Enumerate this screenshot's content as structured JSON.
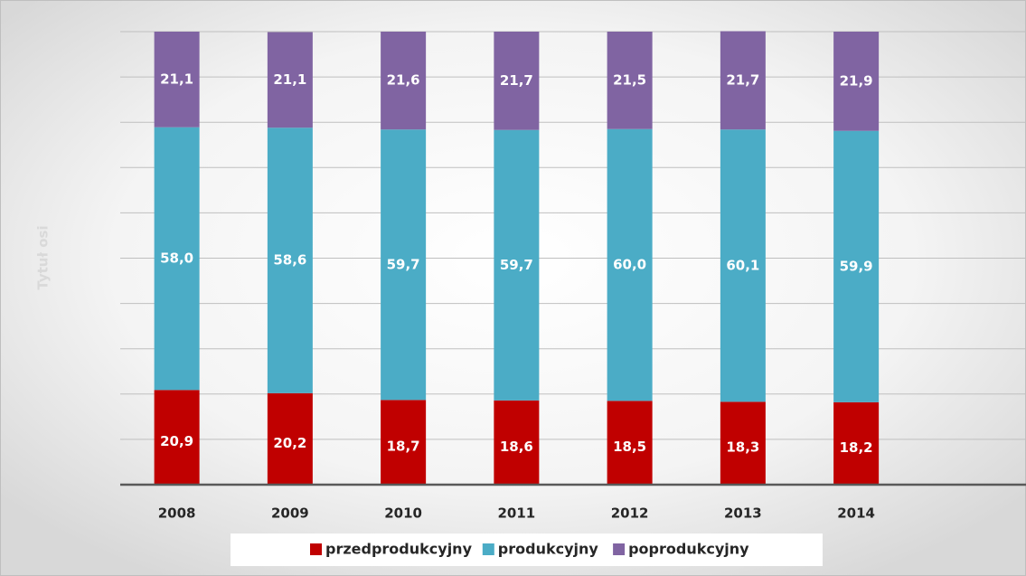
{
  "chart_data": {
    "type": "stacked_bar",
    "y_axis_label": "Tytuł osi",
    "categories": [
      "2008",
      "2009",
      "2010",
      "2011",
      "2012",
      "2013",
      "2014",
      null
    ],
    "series": [
      {
        "name": "przedprodukcyjny",
        "color": "#c00000",
        "values": [
          20.9,
          20.2,
          18.7,
          18.6,
          18.5,
          18.3,
          18.2,
          null
        ],
        "value_labels": [
          "20,9",
          "20,2",
          "18,7",
          "18,6",
          "18,5",
          "18,3",
          "18,2",
          null
        ]
      },
      {
        "name": "produkcyjny",
        "color": "#4bacc6",
        "values": [
          58.0,
          58.6,
          59.7,
          59.7,
          60.0,
          60.1,
          59.9,
          null
        ],
        "value_labels": [
          "58,0",
          "58,6",
          "59,7",
          "59,7",
          "60,0",
          "60,1",
          "59,9",
          null
        ]
      },
      {
        "name": "poprodukcyjny",
        "color": "#8064a2",
        "values": [
          21.1,
          21.1,
          21.6,
          21.7,
          21.5,
          21.7,
          21.9,
          null
        ],
        "value_labels": [
          "21,1",
          "21,1",
          "21,6",
          "21,7",
          "21,5",
          "21,7",
          "21,9",
          null
        ]
      }
    ],
    "ylim": [
      0,
      100
    ],
    "yticks": [
      0,
      10,
      20,
      30,
      40,
      50,
      60,
      70,
      80,
      90,
      100
    ],
    "grid": true,
    "legend": "bottom"
  }
}
